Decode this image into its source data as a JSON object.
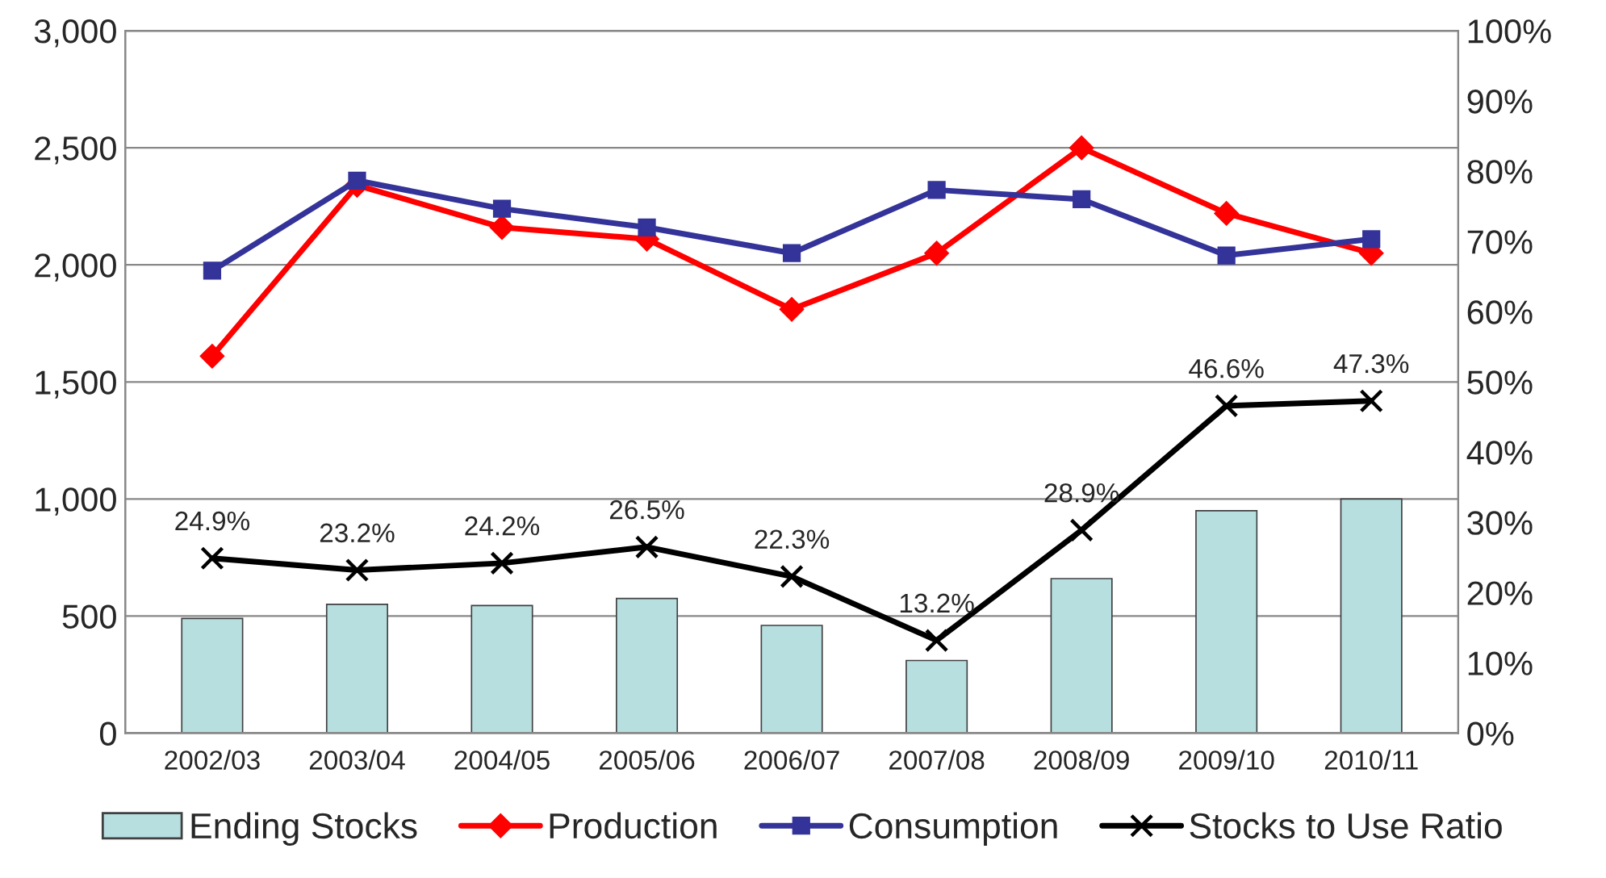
{
  "chart_data": {
    "type": "bar",
    "categories": [
      "2002/03",
      "2003/04",
      "2004/05",
      "2005/06",
      "2006/07",
      "2007/08",
      "2008/09",
      "2009/10",
      "2010/11"
    ],
    "series": [
      {
        "name": "Ending Stocks",
        "color": "#b7dfe0",
        "values": [
          490,
          550,
          545,
          575,
          460,
          310,
          660,
          950,
          1000
        ]
      },
      {
        "name": "Production",
        "type": "line",
        "color": "#ff0000",
        "marker": "diamond",
        "values": [
          1610,
          2340,
          2160,
          2110,
          1810,
          2050,
          2500,
          2220,
          2050
        ]
      },
      {
        "name": "Consumption",
        "type": "line",
        "color": "#333399",
        "marker": "square",
        "values": [
          1975,
          2360,
          2240,
          2160,
          2050,
          2320,
          2280,
          2040,
          2110
        ]
      },
      {
        "name": "Stocks to Use Ratio",
        "type": "line",
        "color": "#000000",
        "marker": "cross",
        "axis": "y2",
        "values": [
          24.9,
          23.2,
          24.2,
          26.5,
          22.3,
          13.2,
          28.9,
          46.6,
          47.3
        ],
        "value_labels": [
          "24.9%",
          "23.2%",
          "24.2%",
          "26.5%",
          "22.3%",
          "13.2%",
          "28.9%",
          "46.6%",
          "47.3%"
        ]
      }
    ],
    "ylim": [
      0,
      3000
    ],
    "yticks": [
      {
        "value": 0,
        "label": "0"
      },
      {
        "value": 500,
        "label": "500"
      },
      {
        "value": 1000,
        "label": "1,000"
      },
      {
        "value": 1500,
        "label": "1,500"
      },
      {
        "value": 2000,
        "label": "2,000"
      },
      {
        "value": 2500,
        "label": "2,500"
      },
      {
        "value": 3000,
        "label": "3,000"
      }
    ],
    "y2lim": [
      0,
      100
    ],
    "y2ticks": [
      {
        "value": 0,
        "label": "0%"
      },
      {
        "value": 10,
        "label": "10%"
      },
      {
        "value": 20,
        "label": "20%"
      },
      {
        "value": 30,
        "label": "30%"
      },
      {
        "value": 40,
        "label": "40%"
      },
      {
        "value": 50,
        "label": "50%"
      },
      {
        "value": 60,
        "label": "60%"
      },
      {
        "value": 70,
        "label": "70%"
      },
      {
        "value": 80,
        "label": "80%"
      },
      {
        "value": 90,
        "label": "90%"
      },
      {
        "value": 100,
        "label": "100%"
      }
    ],
    "grid": "y",
    "legend": "bottom"
  }
}
